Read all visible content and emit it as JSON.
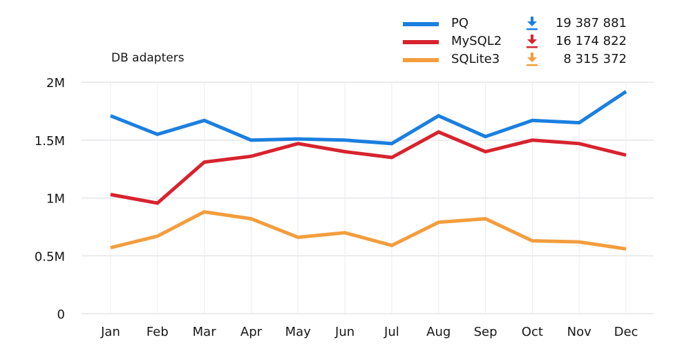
{
  "chart_data": {
    "type": "line",
    "title": "DB adapters",
    "xlabel": "",
    "ylabel": "",
    "categories": [
      "Jan",
      "Feb",
      "Mar",
      "Apr",
      "May",
      "Jun",
      "Jul",
      "Aug",
      "Sep",
      "Oct",
      "Nov",
      "Dec"
    ],
    "ylim": [
      0,
      2000000
    ],
    "yticks": [
      0,
      500000,
      1000000,
      1500000,
      2000000
    ],
    "ytick_labels": [
      "0",
      "0.5M",
      "1M",
      "1.5M",
      "2M"
    ],
    "grid": true,
    "legend_position": "top-right",
    "series": [
      {
        "name": "PQ",
        "color": "#1a7fe0",
        "total": "19 387 881",
        "icon": "download-arrow-icon",
        "values": [
          1710000,
          1550000,
          1670000,
          1500000,
          1510000,
          1500000,
          1470000,
          1710000,
          1530000,
          1670000,
          1650000,
          1920000
        ]
      },
      {
        "name": "MySQL2",
        "color": "#d7232e",
        "total": "16 174 822",
        "icon": "download-arrow-icon",
        "values": [
          1030000,
          955000,
          1310000,
          1360000,
          1470000,
          1400000,
          1350000,
          1570000,
          1400000,
          1500000,
          1470000,
          1370000
        ]
      },
      {
        "name": "SQLite3",
        "color": "#f39d3d",
        "total": "8 315 372",
        "icon": "download-arrow-icon",
        "values": [
          570000,
          670000,
          880000,
          820000,
          660000,
          700000,
          590000,
          790000,
          820000,
          630000,
          620000,
          560000
        ]
      }
    ]
  }
}
